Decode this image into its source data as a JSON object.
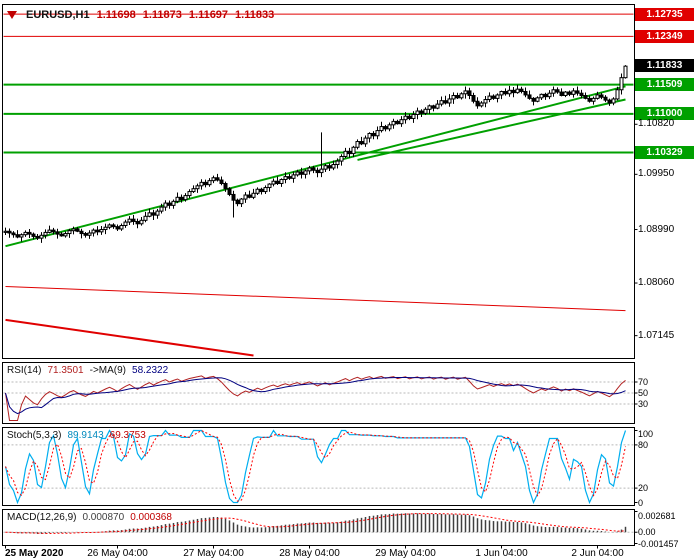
{
  "header": {
    "symbol": "EURUSD,H1",
    "ohlc": [
      "1.11698",
      "1.11873",
      "1.11697",
      "1.11833"
    ]
  },
  "chart_data": {
    "type": "candlestick",
    "symbol": "EURUSD",
    "timeframe": "H1",
    "grid": false,
    "price_axis": {
      "min": 1.068,
      "max": 1.1285,
      "labels": [
        {
          "value": 1.1082,
          "text": "1.10820"
        },
        {
          "value": 1.0995,
          "text": "1.09950"
        },
        {
          "value": 1.0899,
          "text": "1.08990"
        },
        {
          "value": 1.0806,
          "text": "1.08060"
        },
        {
          "value": 1.07145,
          "text": "1.07145"
        }
      ]
    },
    "closes": [
      1.0896,
      1.0893,
      1.089,
      1.0886,
      1.089,
      1.0894,
      1.0891,
      1.0887,
      1.0884,
      1.0889,
      1.0894,
      1.0898,
      1.0895,
      1.0891,
      1.0888,
      1.0892,
      1.0897,
      1.09,
      1.0896,
      1.0892,
      1.0889,
      1.0893,
      1.0898,
      1.0895,
      1.0899,
      1.0903,
      1.0907,
      1.0904,
      1.09,
      1.0906,
      1.0912,
      1.0917,
      1.0913,
      1.0909,
      1.0915,
      1.0922,
      1.0928,
      1.0924,
      1.0931,
      1.0938,
      1.0945,
      1.0941,
      1.0948,
      1.0955,
      1.0951,
      1.0958,
      1.0965,
      1.097,
      1.0975,
      1.0981,
      1.0977,
      1.0984,
      1.0989,
      1.0985,
      1.0979,
      1.097,
      1.096,
      1.095,
      1.0944,
      1.0952,
      1.0959,
      1.0955,
      1.0962,
      1.0969,
      1.0965,
      1.0972,
      1.0978,
      1.0983,
      1.0979,
      1.0986,
      1.0991,
      1.0988,
      1.0994,
      1.0999,
      1.0995,
      1.1001,
      1.1006,
      1.1002,
      1.0998,
      1.1004,
      1.101,
      1.1006,
      1.1012,
      1.1018,
      1.1026,
      1.1035,
      1.1031,
      1.1042,
      1.1052,
      1.1048,
      1.1058,
      1.1066,
      1.1062,
      1.1071,
      1.1078,
      1.1074,
      1.1081,
      1.1087,
      1.1083,
      1.109,
      1.1096,
      1.1092,
      1.1099,
      1.1105,
      1.1101,
      1.1108,
      1.1114,
      1.111,
      1.1117,
      1.1123,
      1.1119,
      1.1126,
      1.1132,
      1.1128,
      1.1135,
      1.114,
      1.1132,
      1.1122,
      1.1114,
      1.1119,
      1.1125,
      1.1131,
      1.1127,
      1.1133,
      1.1139,
      1.1135,
      1.1141,
      1.1137,
      1.1143,
      1.1139,
      1.1133,
      1.1127,
      1.1122,
      1.1128,
      1.1134,
      1.113,
      1.1136,
      1.1142,
      1.1138,
      1.1132,
      1.1138,
      1.1134,
      1.114,
      1.1136,
      1.1132,
      1.1127,
      1.1122,
      1.1127,
      1.1133,
      1.1129,
      1.1124,
      1.1119,
      1.1126,
      1.1142,
      1.1163,
      1.1183
    ],
    "spikes": [
      {
        "index": 57,
        "low": 1.092
      },
      {
        "index": 79,
        "high": 1.1068
      }
    ],
    "time_ticks": [
      {
        "index": 0,
        "label": "25 May 2020"
      },
      {
        "index": 28,
        "label": "26 May 04:00"
      },
      {
        "index": 52,
        "label": "27 May 04:00"
      },
      {
        "index": 76,
        "label": "28 May 04:00"
      },
      {
        "index": 100,
        "label": "29 May 04:00"
      },
      {
        "index": 124,
        "label": "1 Jun 04:00"
      },
      {
        "index": 148,
        "label": "2 Jun 04:00"
      }
    ],
    "levels": [
      {
        "price": 1.12735,
        "text": "1.12735",
        "color": "#E00000",
        "width": 1
      },
      {
        "price": 1.12349,
        "text": "1.12349",
        "color": "#E00000",
        "width": 1
      },
      {
        "price": 1.11509,
        "text": "1.11509",
        "color": "#00A000",
        "width": 2
      },
      {
        "price": 1.11,
        "text": "1.11000",
        "color": "#00A000",
        "width": 2
      },
      {
        "price": 1.10329,
        "text": "1.10329",
        "color": "#00A000",
        "width": 2
      }
    ],
    "current_price": {
      "value": 1.11833,
      "text": "1.11833",
      "box_bg": "#000000"
    },
    "trendlines": [
      {
        "i1": 0,
        "p1": 1.087,
        "i2": 155,
        "p2": 1.1148,
        "color": "#00A000",
        "width": 2
      },
      {
        "i1": 88,
        "p1": 1.102,
        "i2": 155,
        "p2": 1.1125,
        "color": "#00A000",
        "width": 2
      },
      {
        "i1": 0,
        "p1": 1.08,
        "i2": 155,
        "p2": 1.0758,
        "color": "#E00000",
        "width": 1
      },
      {
        "i1": 0,
        "p1": 1.0742,
        "i2": 62,
        "p2": 1.0672,
        "color": "#E00000",
        "width": 2
      }
    ],
    "indicators": {
      "rsi": {
        "name": "RSI(14)",
        "value": "71.3501",
        "ma_name": "->MA(9)",
        "ma_value": "58.2322",
        "period": 14,
        "ma_period": 9,
        "range": [
          0,
          100
        ],
        "levels": [
          70,
          50,
          30
        ],
        "line_color": "#B22222",
        "ma_color": "#000080"
      },
      "stoch": {
        "name": "Stoch(5,3,3)",
        "value": "89.9143",
        "signal_value": "69.3753",
        "k_period": 5,
        "slowing": 3,
        "d_period": 3,
        "range": [
          0,
          100
        ],
        "levels": [
          80,
          20
        ],
        "scale_labels": [
          {
            "v": 100,
            "t": "100"
          },
          {
            "v": 80,
            "t": "80"
          },
          {
            "v": 20,
            "t": "20"
          },
          {
            "v": 0,
            "t": "0"
          }
        ],
        "k_color": "#00AEEF",
        "d_color": "#FF0000"
      },
      "macd": {
        "name": "MACD(12,26,9)",
        "value": "0.000870",
        "signal_value": "0.000368",
        "fast": 12,
        "slow": 26,
        "signal": 9,
        "range": [
          -0.001457,
          0.002681
        ],
        "scale_labels": [
          {
            "v": 0.002681,
            "t": "0.002681"
          },
          {
            "v": 0,
            "t": "0.00"
          },
          {
            "v": -0.001457,
            "t": "-0.001457"
          }
        ],
        "hist_color": "#404040",
        "signal_color": "#FF0000"
      }
    }
  }
}
